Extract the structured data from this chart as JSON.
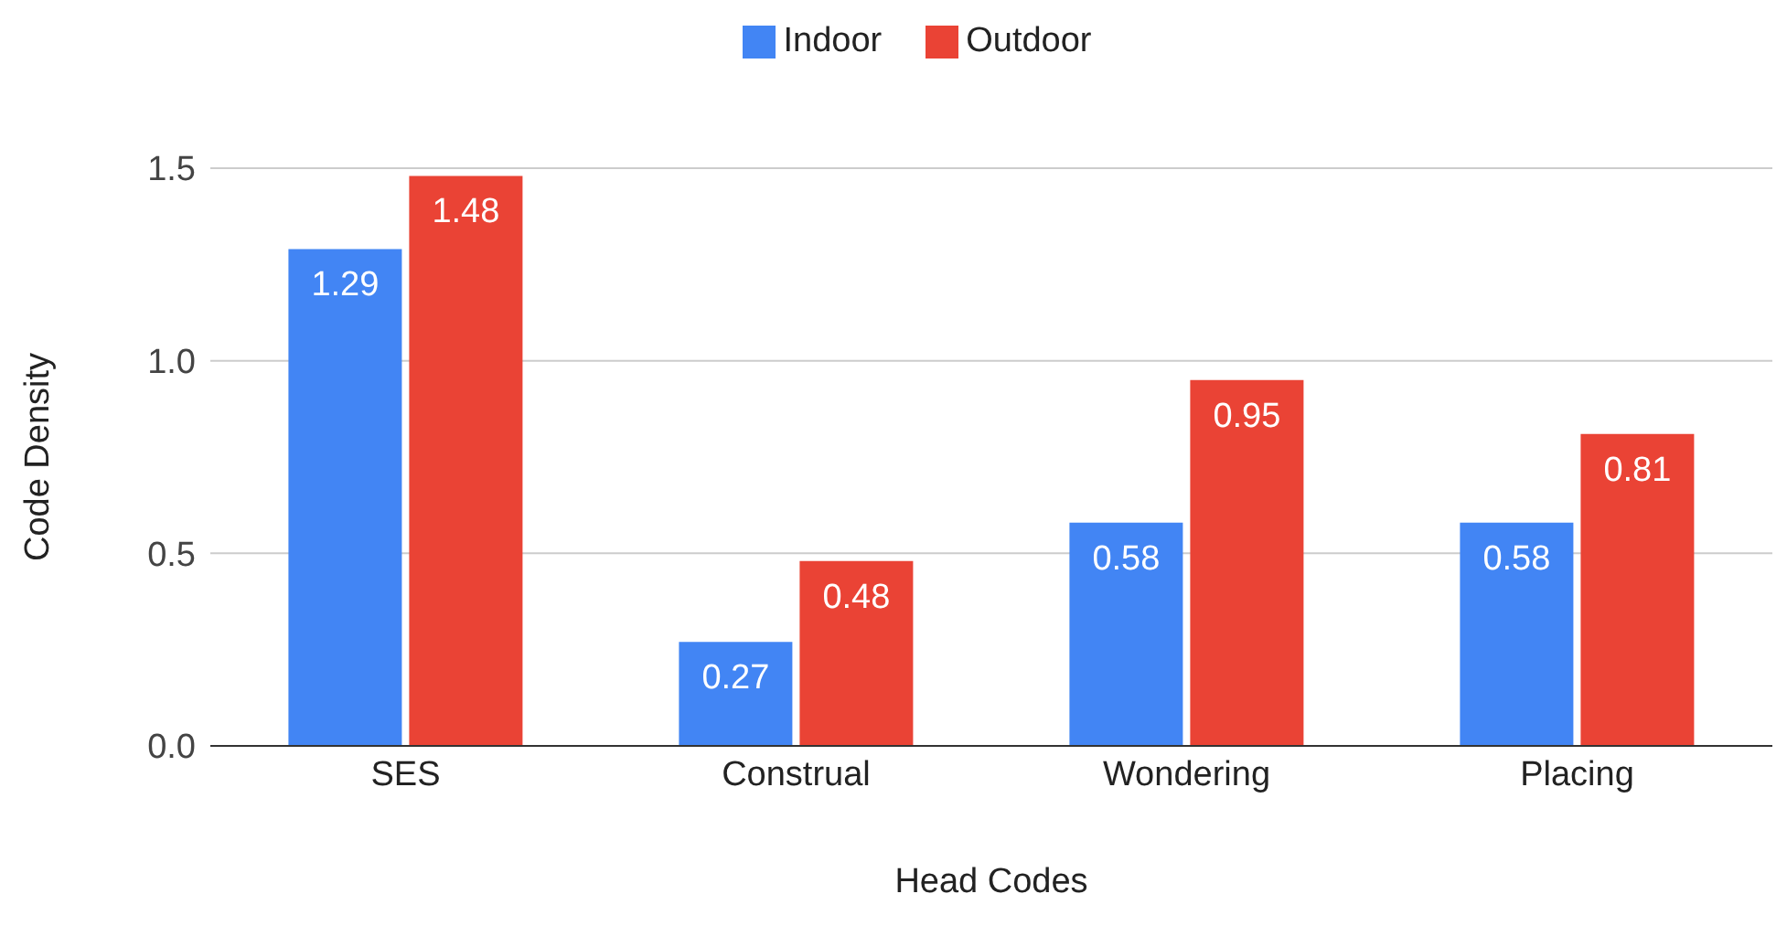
{
  "chart_data": {
    "type": "bar",
    "xlabel": "Head Codes",
    "ylabel": "Code Density",
    "categories": [
      "SES",
      "Construal",
      "Wondering",
      "Placing"
    ],
    "series": [
      {
        "name": "Indoor",
        "color": "#4285f4",
        "values": [
          1.29,
          0.27,
          0.58,
          0.58
        ]
      },
      {
        "name": "Outdoor",
        "color": "#ea4335",
        "values": [
          1.48,
          0.48,
          0.95,
          0.81
        ]
      }
    ],
    "ylim": [
      0,
      1.5
    ],
    "yticks": [
      {
        "value": 0,
        "label": "0.0"
      },
      {
        "value": 0.5,
        "label": "0.5"
      },
      {
        "value": 1,
        "label": "1.0"
      },
      {
        "value": 1.5,
        "label": "1.5"
      }
    ],
    "grid": "y",
    "legend": "top",
    "data_labels": true
  }
}
